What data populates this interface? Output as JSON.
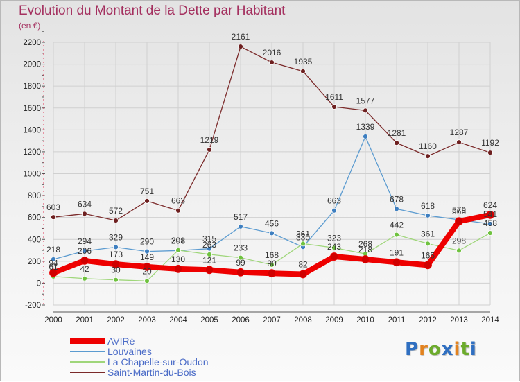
{
  "header": {
    "title": "Evolution du Montant de la Dette par Habitant",
    "unit": "(en €)"
  },
  "colors": {
    "title": "#a4305f",
    "grid": "#d0d0d0",
    "axis": "#555555",
    "legend_text": "#4a6bc7"
  },
  "logo": {
    "letters": [
      "P",
      "r",
      "o",
      "x",
      "i",
      "t",
      "i"
    ],
    "colors": [
      "#2f6fc1",
      "#e3821e",
      "#6cab2c",
      "#2f6fc1",
      "#e3821e",
      "#6cab2c",
      "#2f6fc1"
    ]
  },
  "chart_data": {
    "type": "line",
    "title": "Evolution du Montant de la Dette par Habitant",
    "ylabel": "(en €)",
    "xlabel": "",
    "x": [
      "2000",
      "2001",
      "2002",
      "2003",
      "2004",
      "2005",
      "2006",
      "2007",
      "2008",
      "2009",
      "2010",
      "2011",
      "2012",
      "2013",
      "2014"
    ],
    "ylim": [
      -200,
      2200
    ],
    "yticks": [
      -200,
      0,
      200,
      400,
      600,
      800,
      1000,
      1200,
      1400,
      1600,
      1800,
      2000,
      2200
    ],
    "grid": true,
    "legend_position": "bottom-left",
    "series": [
      {
        "name": "Saint-Martin-du-Bois",
        "color": "#7b2a2a",
        "dot": "#6e2020",
        "width": 1.3,
        "values": [
          603,
          634,
          572,
          751,
          663,
          1219,
          2161,
          2016,
          1935,
          1611,
          1577,
          1281,
          1160,
          1287,
          1192
        ],
        "labels": [
          "603",
          "634",
          "572",
          "751",
          "663",
          "1219",
          "2161",
          "2016",
          "1935",
          "1611",
          "1577",
          "1281",
          "1160",
          "1287",
          "1192"
        ]
      },
      {
        "name": "Louvaines",
        "color": "#5b9bd0",
        "dot": "#3e7fc0",
        "width": 1.3,
        "values": [
          218,
          294,
          329,
          290,
          298,
          315,
          517,
          456,
          330,
          663,
          1339,
          678,
          618,
          579,
          541
        ],
        "labels": [
          "218",
          "294",
          "329",
          "290",
          "298",
          "315",
          "517",
          "456",
          "330",
          "663",
          "1339",
          "678",
          "618",
          "579",
          "541"
        ]
      },
      {
        "name": "La Chapelle-sur-Oudon",
        "color": "#9fd67a",
        "dot": "#6fc23f",
        "width": 1.3,
        "values": [
          61,
          42,
          30,
          20,
          301,
          263,
          233,
          168,
          361,
          323,
          268,
          442,
          361,
          298,
          458
        ],
        "labels": [
          "61",
          "42",
          "30",
          "20",
          "301",
          "263",
          "233",
          "168",
          "361",
          "323",
          "268",
          "442",
          "361",
          "298",
          "458"
        ]
      },
      {
        "name": "AVIRé",
        "color": "#ee0000",
        "dot": "#d00000",
        "width": 8,
        "values": [
          94,
          206,
          173,
          149,
          130,
          121,
          99,
          90,
          82,
          243,
          218,
          191,
          165,
          565,
          624
        ],
        "labels": [
          "94",
          "206",
          "173",
          "149",
          "130",
          "121",
          "99",
          "90",
          "82",
          "243",
          "218",
          "191",
          "165",
          "565",
          "624"
        ]
      }
    ],
    "legend": [
      {
        "name": "AVIRé",
        "color": "#ee0000",
        "width": 8
      },
      {
        "name": "Louvaines",
        "color": "#5b9bd0",
        "width": 2
      },
      {
        "name": "La Chapelle-sur-Oudon",
        "color": "#9fd67a",
        "width": 2
      },
      {
        "name": "Saint-Martin-du-Bois",
        "color": "#7b2a2a",
        "width": 2
      }
    ]
  }
}
